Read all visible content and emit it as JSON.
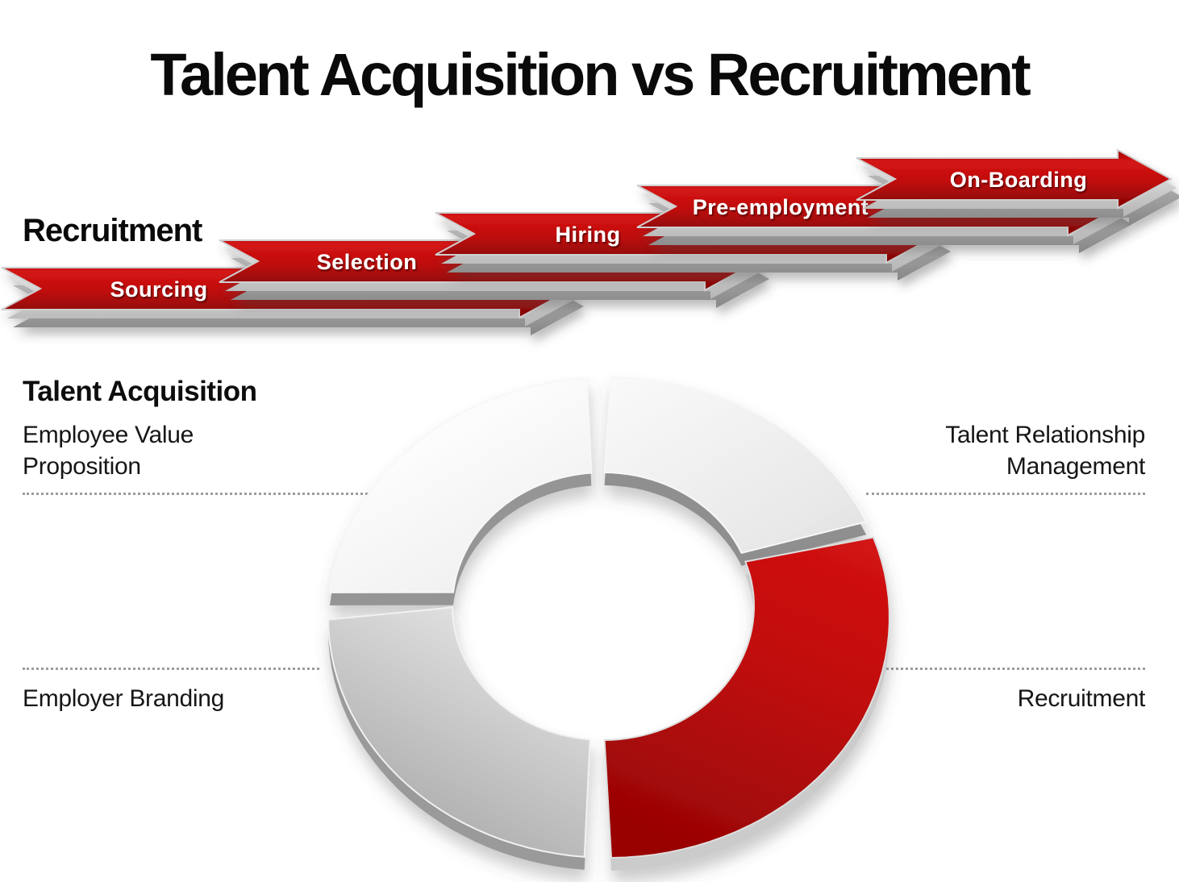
{
  "slide_title": "Talent Acquisition vs Recruitment",
  "recruitment_flow": {
    "heading": "Recruitment",
    "steps": [
      {
        "label": "Sourcing"
      },
      {
        "label": "Selection"
      },
      {
        "label": "Hiring"
      },
      {
        "label": "Pre-employment"
      },
      {
        "label": "On-Boarding"
      }
    ]
  },
  "talent_acquisition": {
    "heading": "Talent Acquisition",
    "items": [
      {
        "id": "employee-value-proposition",
        "lines": [
          "Employee Value",
          "Proposition"
        ],
        "position": "top-left",
        "donut_color": "gray"
      },
      {
        "id": "talent-relationship-management",
        "lines": [
          "Talent Relationship",
          "Management"
        ],
        "position": "top-right",
        "donut_color": "gray"
      },
      {
        "id": "employer-branding",
        "lines": [
          "Employer Branding"
        ],
        "position": "bottom-left",
        "donut_color": "gray"
      },
      {
        "id": "recruitment",
        "lines": [
          "Recruitment"
        ],
        "position": "bottom-right",
        "donut_color": "red"
      }
    ]
  },
  "colors": {
    "arrow_red": "#c11010",
    "arrow_red_dark": "#8a0404",
    "donut_red": "#c00d0d",
    "donut_gray": "#d9d9d9",
    "text_black": "#111111",
    "dotted_line_gray": "#9c9c9c",
    "label_white": "#ffffff"
  }
}
